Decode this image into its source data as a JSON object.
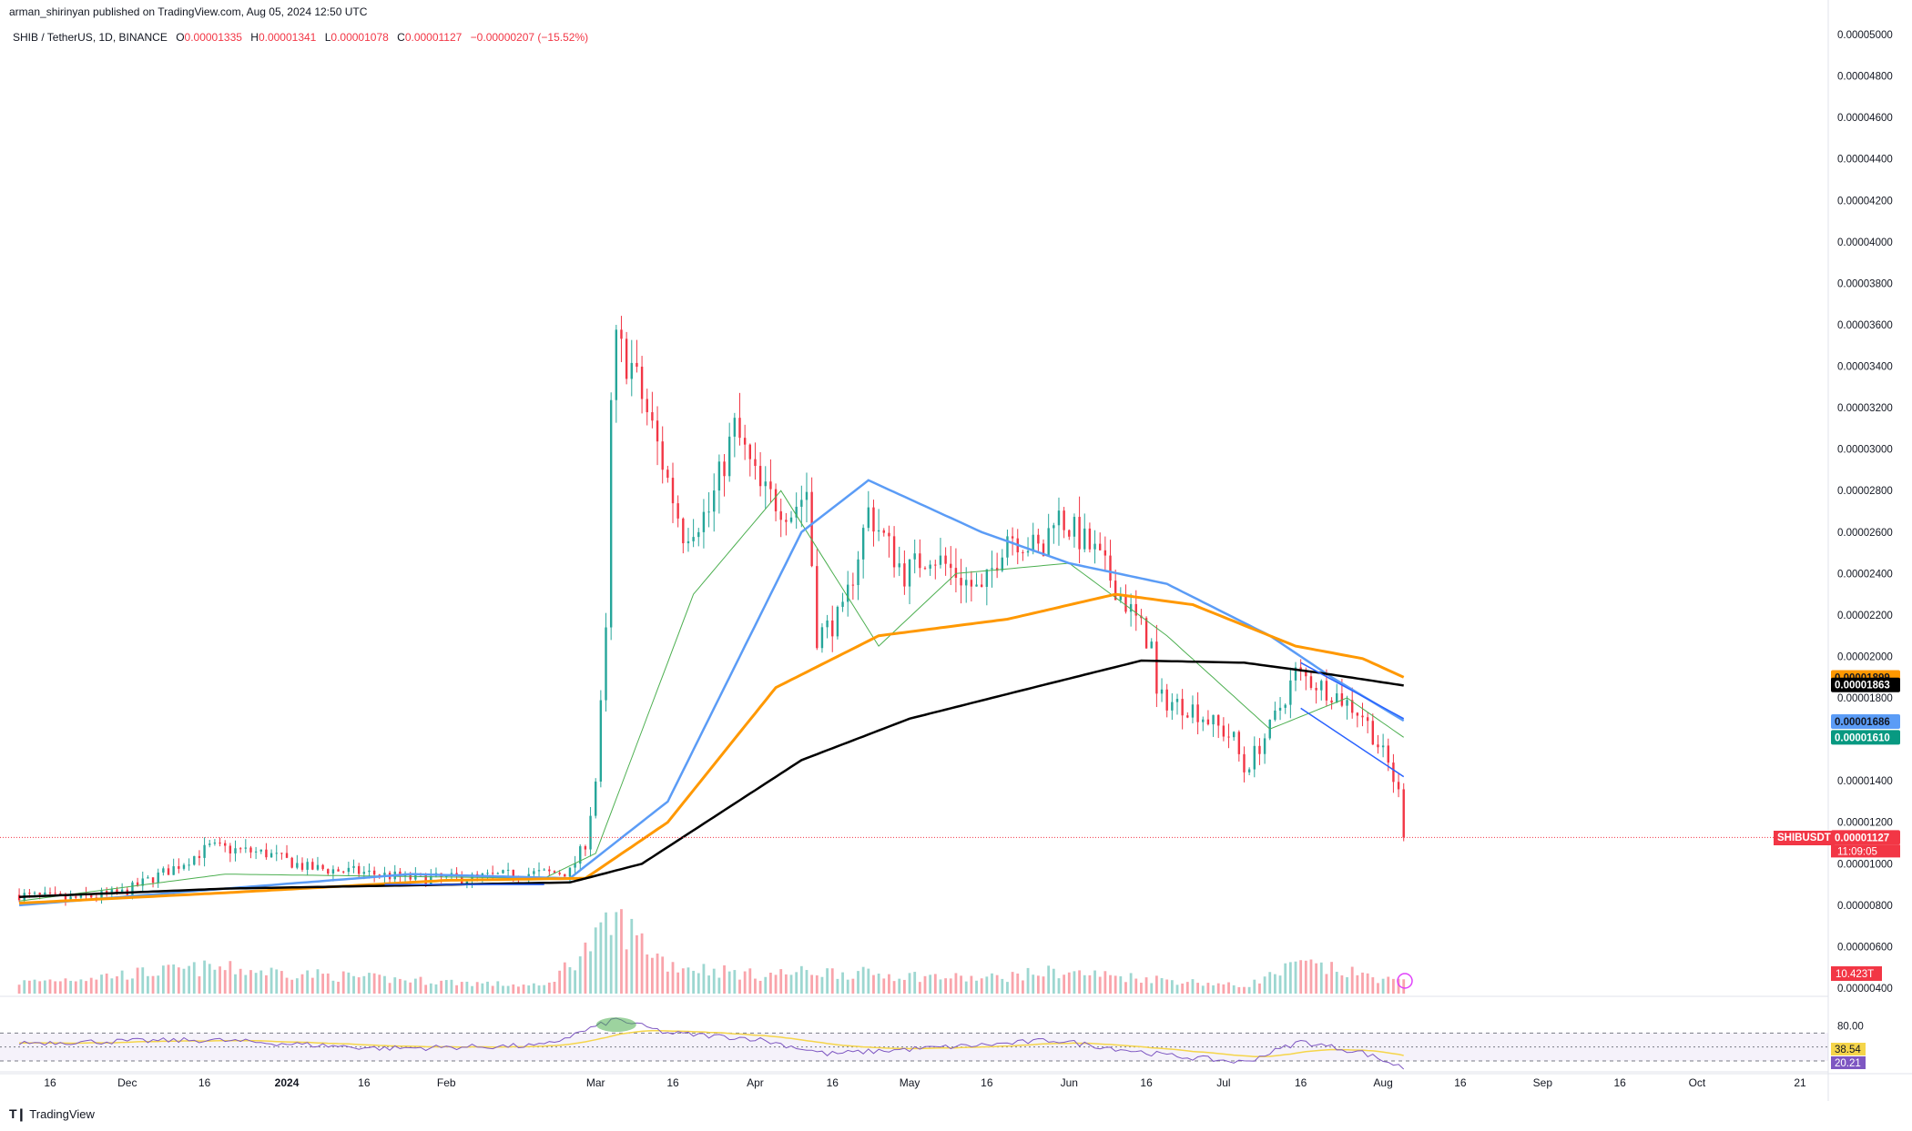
{
  "header": {
    "publisher": "arman_shirinyan published on TradingView.com, Aug 05, 2024 12:50 UTC",
    "symbol": "SHIB / TetherUS, 1D, BINANCE",
    "ohlc": [
      {
        "label": "O",
        "value": "0.00001335"
      },
      {
        "label": "H",
        "value": "0.00001341"
      },
      {
        "label": "L",
        "value": "0.00001078"
      },
      {
        "label": "C",
        "value": "0.00001127"
      }
    ],
    "change": "−0.00000207 (−15.52%)"
  },
  "brand": "TradingView",
  "colors": {
    "up": "#26a69a",
    "down": "#f23645",
    "ma_fast": "#4caf50",
    "ma_blue": "#5b9cf6",
    "ma_orange": "#ff9800",
    "ma_black": "#000000",
    "rsi": "#7e57c2",
    "rsi_ma": "#f5d54a",
    "channel": "#2962ff"
  },
  "price_tags": [
    {
      "text": "0.00001899",
      "value": 1.899e-05,
      "bg": "#ff9800",
      "fg": "#131722"
    },
    {
      "text": "0.00001863",
      "value": 1.863e-05,
      "bg": "#000000",
      "fg": "#ffffff"
    },
    {
      "text": "0.00001686",
      "value": 1.686e-05,
      "bg": "#5b9cf6",
      "fg": "#131722"
    },
    {
      "text": "0.00001610",
      "value": 1.61e-05,
      "bg": "#089981",
      "fg": "#ffffff"
    },
    {
      "text": "0.00001127",
      "value": 1.127e-05,
      "bg": "#f23645",
      "fg": "#ffffff"
    }
  ],
  "symbol_tag": "SHIBUSDT",
  "countdown": "11:09:05",
  "volume_tag": "10.423T",
  "rsi_tags": [
    {
      "text": "38.54",
      "bg": "#f5d54a",
      "fg": "#131722"
    },
    {
      "text": "20.21",
      "bg": "#7e57c2",
      "fg": "#ffffff"
    }
  ],
  "rsi_axis_label": "80.00",
  "chart_data": {
    "type": "candlestick",
    "y_axis_labels": [
      "0.00005000",
      "0.00004800",
      "0.00004600",
      "0.00004400",
      "0.00004200",
      "0.00004000",
      "0.00003800",
      "0.00003600",
      "0.00003400",
      "0.00003200",
      "0.00003000",
      "0.00002800",
      "0.00002600",
      "0.00002400",
      "0.00002200",
      "0.00002000",
      "0.00001800",
      "0.00001600",
      "0.00001400",
      "0.00001200",
      "0.00001000",
      "0.00000800",
      "0.00000600",
      "0.00000400"
    ],
    "y_axis_values": [
      5e-05,
      4.8e-05,
      4.6e-05,
      4.4e-05,
      4.2e-05,
      4e-05,
      3.8e-05,
      3.6e-05,
      3.4e-05,
      3.2e-05,
      3e-05,
      2.8e-05,
      2.6e-05,
      2.4e-05,
      2.2e-05,
      2e-05,
      1.8e-05,
      1.6e-05,
      1.4e-05,
      1.2e-05,
      1e-05,
      8e-06,
      6e-06,
      4e-06
    ],
    "x_axis_labels": [
      "16",
      "Dec",
      "16",
      "2024",
      "16",
      "Feb",
      "Mar",
      "16",
      "Apr",
      "16",
      "May",
      "16",
      "Jun",
      "16",
      "Jul",
      "16",
      "Aug",
      "16",
      "Sep",
      "16",
      "Oct",
      "21"
    ],
    "x_axis_dates": [
      "2023-11-16",
      "2023-12-01",
      "2023-12-16",
      "2024-01-01",
      "2024-01-16",
      "2024-02-01",
      "2024-03-01",
      "2024-03-16",
      "2024-04-01",
      "2024-04-16",
      "2024-05-01",
      "2024-05-16",
      "2024-06-01",
      "2024-06-16",
      "2024-07-01",
      "2024-07-16",
      "2024-08-01",
      "2024-08-16",
      "2024-09-01",
      "2024-09-16",
      "2024-10-01",
      "2024-10-21"
    ],
    "price_keypoints": [
      {
        "date": "2023-11-10",
        "price": 8.5e-06
      },
      {
        "date": "2023-11-20",
        "price": 8.3e-06
      },
      {
        "date": "2023-11-30",
        "price": 8.6e-06
      },
      {
        "date": "2023-12-10",
        "price": 9.8e-06
      },
      {
        "date": "2023-12-17",
        "price": 1.08e-05
      },
      {
        "date": "2023-12-28",
        "price": 1.05e-05
      },
      {
        "date": "2024-01-05",
        "price": 9.8e-06
      },
      {
        "date": "2024-01-15",
        "price": 9.6e-06
      },
      {
        "date": "2024-01-25",
        "price": 9.3e-06
      },
      {
        "date": "2024-02-05",
        "price": 9.3e-06
      },
      {
        "date": "2024-02-15",
        "price": 9.5e-06
      },
      {
        "date": "2024-02-25",
        "price": 9.6e-06
      },
      {
        "date": "2024-02-28",
        "price": 1.1e-05
      },
      {
        "date": "2024-03-01",
        "price": 1.4e-05
      },
      {
        "date": "2024-03-03",
        "price": 2.1e-05
      },
      {
        "date": "2024-03-04",
        "price": 3.2e-05
      },
      {
        "date": "2024-03-05",
        "price": 3.5e-05
      },
      {
        "date": "2024-03-08",
        "price": 3.4e-05
      },
      {
        "date": "2024-03-12",
        "price": 3.1e-05
      },
      {
        "date": "2024-03-18",
        "price": 2.6e-05
      },
      {
        "date": "2024-03-23",
        "price": 2.7e-05
      },
      {
        "date": "2024-03-28",
        "price": 3.1e-05
      },
      {
        "date": "2024-04-02",
        "price": 2.8e-05
      },
      {
        "date": "2024-04-08",
        "price": 2.7e-05
      },
      {
        "date": "2024-04-11",
        "price": 2.8e-05
      },
      {
        "date": "2024-04-13",
        "price": 2.1e-05
      },
      {
        "date": "2024-04-18",
        "price": 2.2e-05
      },
      {
        "date": "2024-04-23",
        "price": 2.7e-05
      },
      {
        "date": "2024-04-30",
        "price": 2.4e-05
      },
      {
        "date": "2024-05-05",
        "price": 2.5e-05
      },
      {
        "date": "2024-05-15",
        "price": 2.3e-05
      },
      {
        "date": "2024-05-20",
        "price": 2.6e-05
      },
      {
        "date": "2024-05-27",
        "price": 2.5e-05
      },
      {
        "date": "2024-05-29",
        "price": 2.7e-05
      },
      {
        "date": "2024-06-06",
        "price": 2.5e-05
      },
      {
        "date": "2024-06-11",
        "price": 2.3e-05
      },
      {
        "date": "2024-06-17",
        "price": 2.05e-05
      },
      {
        "date": "2024-06-18",
        "price": 1.8e-05
      },
      {
        "date": "2024-06-25",
        "price": 1.75e-05
      },
      {
        "date": "2024-07-03",
        "price": 1.6e-05
      },
      {
        "date": "2024-07-05",
        "price": 1.45e-05
      },
      {
        "date": "2024-07-10",
        "price": 1.65e-05
      },
      {
        "date": "2024-07-15",
        "price": 1.92e-05
      },
      {
        "date": "2024-07-22",
        "price": 1.83e-05
      },
      {
        "date": "2024-07-28",
        "price": 1.72e-05
      },
      {
        "date": "2024-08-02",
        "price": 1.48e-05
      },
      {
        "date": "2024-08-04",
        "price": 1.34e-05
      },
      {
        "date": "2024-08-05",
        "price": 1.127e-05
      }
    ],
    "series": [
      {
        "values": [
          [
            8.2e-06,
            "2023-11-10"
          ],
          [
            9.5e-06,
            "2023-12-20"
          ],
          [
            9.3e-06,
            "2024-02-20"
          ],
          [
            1.05e-05,
            "2024-03-01"
          ],
          [
            2.3e-05,
            "2024-03-20"
          ],
          [
            2.8e-05,
            "2024-04-06"
          ],
          [
            2.05e-05,
            "2024-04-25"
          ],
          [
            2.4e-05,
            "2024-05-10"
          ],
          [
            2.45e-05,
            "2024-06-01"
          ],
          [
            2.1e-05,
            "2024-06-20"
          ],
          [
            1.65e-05,
            "2024-07-10"
          ],
          [
            1.8e-05,
            "2024-07-25"
          ],
          [
            1.61e-05,
            "2024-08-05"
          ]
        ]
      },
      {
        "values": [
          [
            8e-06,
            "2023-11-10"
          ],
          [
            8.8e-06,
            "2023-12-20"
          ],
          [
            9.5e-06,
            "2024-01-25"
          ],
          [
            9.3e-06,
            "2024-02-25"
          ],
          [
            1.3e-05,
            "2024-03-15"
          ],
          [
            2.6e-05,
            "2024-04-10"
          ],
          [
            2.85e-05,
            "2024-04-23"
          ],
          [
            2.6e-05,
            "2024-05-15"
          ],
          [
            2.45e-05,
            "2024-06-01"
          ],
          [
            2.35e-05,
            "2024-06-20"
          ],
          [
            2.1e-05,
            "2024-07-10"
          ],
          [
            1.9e-05,
            "2024-07-22"
          ],
          [
            1.69e-05,
            "2024-08-05"
          ]
        ]
      },
      {
        "values": [
          [
            8.1e-06,
            "2023-11-10"
          ],
          [
            8.6e-06,
            "2023-12-20"
          ],
          [
            9.2e-06,
            "2024-02-01"
          ],
          [
            9.3e-06,
            "2024-02-28"
          ],
          [
            1.2e-05,
            "2024-03-15"
          ],
          [
            1.85e-05,
            "2024-04-05"
          ],
          [
            2.1e-05,
            "2024-04-25"
          ],
          [
            2.18e-05,
            "2024-05-20"
          ],
          [
            2.3e-05,
            "2024-06-10"
          ],
          [
            2.25e-05,
            "2024-06-25"
          ],
          [
            2.05e-05,
            "2024-07-15"
          ],
          [
            1.99e-05,
            "2024-07-28"
          ],
          [
            1.9e-05,
            "2024-08-05"
          ]
        ]
      },
      {
        "values": [
          [
            8.4e-06,
            "2023-11-10"
          ],
          [
            8.8e-06,
            "2023-12-20"
          ],
          [
            9.1e-06,
            "2024-02-25"
          ],
          [
            1e-05,
            "2024-03-10"
          ],
          [
            1.5e-05,
            "2024-04-10"
          ],
          [
            1.7e-05,
            "2024-05-01"
          ],
          [
            1.85e-05,
            "2024-05-25"
          ],
          [
            1.98e-05,
            "2024-06-15"
          ],
          [
            1.97e-05,
            "2024-07-05"
          ],
          [
            1.92e-05,
            "2024-07-20"
          ],
          [
            1.86e-05,
            "2024-08-05"
          ]
        ]
      }
    ],
    "rsi_keypoints": [
      [
        56,
        "2023-11-10"
      ],
      [
        60,
        "2023-12-17"
      ],
      [
        48,
        "2024-01-20"
      ],
      [
        52,
        "2024-02-20"
      ],
      [
        90,
        "2024-03-05"
      ],
      [
        70,
        "2024-03-15"
      ],
      [
        62,
        "2024-04-01"
      ],
      [
        40,
        "2024-04-15"
      ],
      [
        55,
        "2024-05-20"
      ],
      [
        60,
        "2024-05-29"
      ],
      [
        38,
        "2024-06-20"
      ],
      [
        28,
        "2024-07-05"
      ],
      [
        58,
        "2024-07-16"
      ],
      [
        42,
        "2024-07-28"
      ],
      [
        20,
        "2024-08-05"
      ]
    ],
    "volume_keypoints": [
      [
        0.15,
        "2023-11-10"
      ],
      [
        0.35,
        "2023-12-17"
      ],
      [
        0.2,
        "2024-01-20"
      ],
      [
        0.1,
        "2024-02-20"
      ],
      [
        0.9,
        "2024-03-04"
      ],
      [
        1.0,
        "2024-03-05"
      ],
      [
        0.4,
        "2024-03-15"
      ],
      [
        0.25,
        "2024-04-01"
      ],
      [
        0.3,
        "2024-04-13"
      ],
      [
        0.2,
        "2024-05-15"
      ],
      [
        0.3,
        "2024-05-29"
      ],
      [
        0.2,
        "2024-06-18"
      ],
      [
        0.1,
        "2024-07-05"
      ],
      [
        0.4,
        "2024-07-16"
      ],
      [
        0.15,
        "2024-08-05"
      ]
    ],
    "rsi_levels": [
      70,
      50,
      30
    ],
    "rsi_range": [
      0,
      100
    ],
    "ylim": [
      4e-06,
      5e-05
    ],
    "grid": false,
    "scale": "linear"
  }
}
